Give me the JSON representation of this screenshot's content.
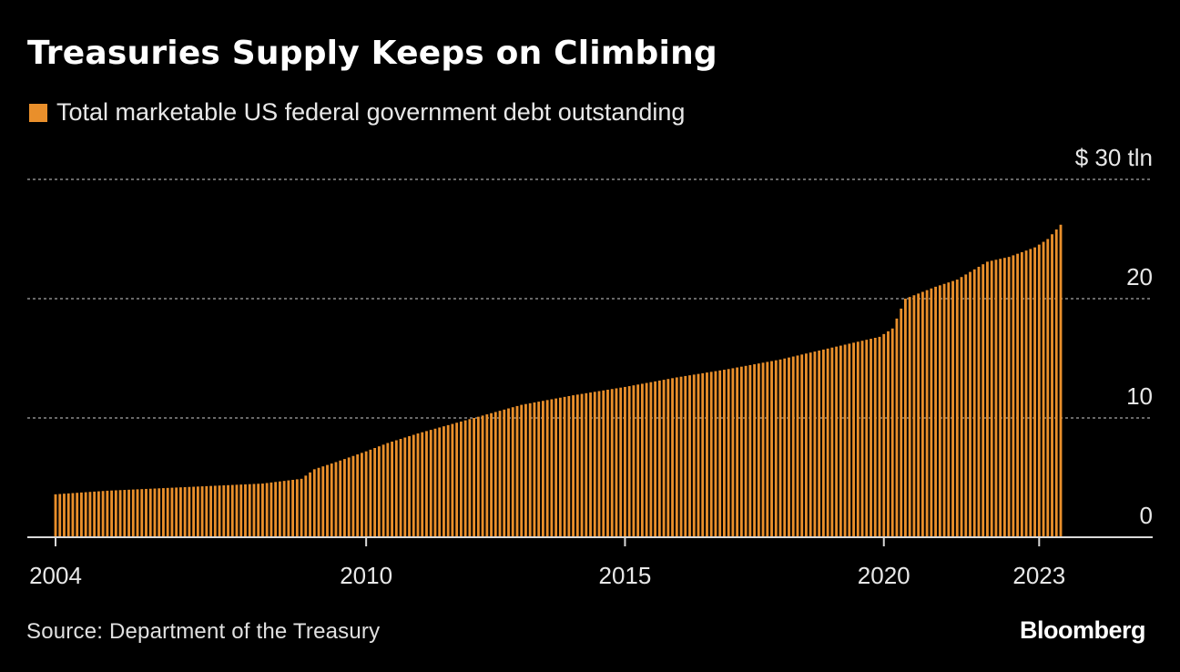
{
  "header": {
    "title": "Treasuries Supply Keeps on Climbing",
    "legend_label": "Total marketable US federal government debt outstanding"
  },
  "footer": {
    "source": "Source: Department of the Treasury",
    "brand": "Bloomberg"
  },
  "colors": {
    "background": "#000000",
    "bar": "#e98f2b",
    "grid": "#8a8a8a",
    "text": "#e8e8e8"
  },
  "chart_data": {
    "type": "bar",
    "unit": "$ tln",
    "x_range": [
      "2004-01",
      "2023-06"
    ],
    "ylim": [
      0,
      30
    ],
    "grid": true,
    "legend_position": "top-left",
    "x_tick_labels": [
      "2004",
      "2010",
      "2015",
      "2020",
      "2023"
    ],
    "y_tick_labels": [
      "0",
      "10",
      "20",
      "$ 30  tln"
    ],
    "y_ticks": [
      0,
      10,
      20,
      30
    ],
    "series": [
      {
        "name": "Total marketable US federal government debt outstanding",
        "points": [
          [
            "2004-01",
            3.6
          ],
          [
            "2005-01",
            3.9
          ],
          [
            "2006-01",
            4.1
          ],
          [
            "2007-01",
            4.3
          ],
          [
            "2008-01",
            4.5
          ],
          [
            "2008-10",
            4.9
          ],
          [
            "2009-01",
            5.7
          ],
          [
            "2009-06",
            6.3
          ],
          [
            "2010-01",
            7.2
          ],
          [
            "2010-06",
            7.9
          ],
          [
            "2011-01",
            8.7
          ],
          [
            "2012-01",
            9.9
          ],
          [
            "2013-01",
            11.1
          ],
          [
            "2014-01",
            11.9
          ],
          [
            "2015-01",
            12.6
          ],
          [
            "2016-01",
            13.4
          ],
          [
            "2017-01",
            14.1
          ],
          [
            "2018-01",
            14.9
          ],
          [
            "2019-01",
            15.9
          ],
          [
            "2019-12",
            16.8
          ],
          [
            "2020-03",
            17.5
          ],
          [
            "2020-06",
            20.0
          ],
          [
            "2021-01",
            21.0
          ],
          [
            "2021-06",
            21.6
          ],
          [
            "2022-01",
            23.1
          ],
          [
            "2022-06",
            23.5
          ],
          [
            "2022-12",
            24.3
          ],
          [
            "2023-03",
            25.0
          ],
          [
            "2023-06",
            26.2
          ]
        ]
      }
    ]
  }
}
